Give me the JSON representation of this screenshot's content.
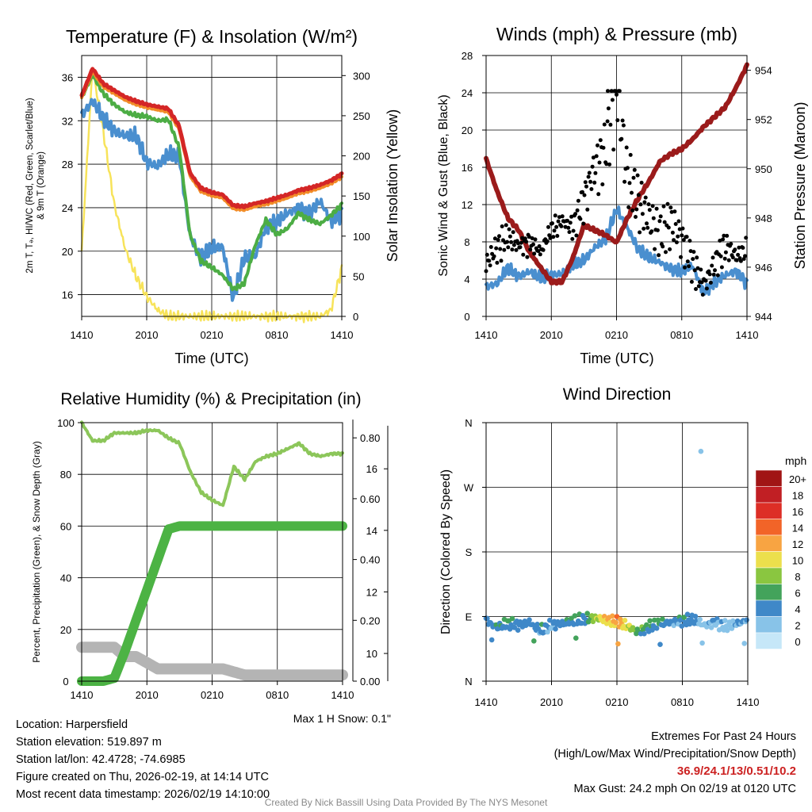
{
  "panels": {
    "temperature": {
      "title": "Temperature (F) & Insolation (W/m²)",
      "ylabel_line1": "2m T, Tₔ, HI/WC (Red, Green, Scarlet/Blue)",
      "ylabel_line2": "& 9m T (Orange)",
      "ylabel_right": "Solar Insolation (Yellow)",
      "xlabel": "Time (UTC)",
      "left_ticks": [
        "16",
        "20",
        "24",
        "28",
        "32",
        "36"
      ],
      "right_ticks": [
        "0",
        "50",
        "100",
        "150",
        "200",
        "250",
        "300"
      ]
    },
    "winds": {
      "title": "Winds (mph) & Pressure (mb)",
      "ylabel": "Sonic Wind & Gust (Blue, Black)",
      "ylabel_right": "Station Pressure (Maroon)",
      "xlabel": "Time (UTC)",
      "left_ticks": [
        "0",
        "4",
        "8",
        "12",
        "16",
        "20",
        "24",
        "28"
      ],
      "right_ticks": [
        "944",
        "946",
        "948",
        "950",
        "952",
        "954"
      ]
    },
    "humidity": {
      "title": "Relative Humidity (%) & Precipitation (in)",
      "ylabel": "Percent, Precipitation (Green), & Snow Depth (Gray)",
      "left_ticks": [
        "0",
        "20",
        "40",
        "60",
        "80",
        "100"
      ],
      "precip_ticks": [
        "0.00",
        "0.20",
        "0.40",
        "0.60",
        "0.80"
      ],
      "snow_ticks": [
        "10",
        "12",
        "14",
        "16"
      ],
      "note": "Max 1 H Snow: 0.1\""
    },
    "direction": {
      "title": "Wind Direction",
      "ylabel": "Direction (Colored By Speed)",
      "left_ticks": [
        "N",
        "E",
        "S",
        "W",
        "N"
      ],
      "legend_title": "mph",
      "legend_labels": [
        "20+",
        "18",
        "16",
        "14",
        "12",
        "10",
        "8",
        "6",
        "4",
        "2",
        "0"
      ]
    }
  },
  "time_ticks": [
    "1410",
    "2010",
    "0210",
    "0810",
    "1410"
  ],
  "colors": {
    "temp": "#d42626",
    "nine_m": "#f28c28",
    "dewpoint": "#4cad44",
    "windchill": "#4a8fcf",
    "solar": "#f7e35a",
    "gust": "#000000",
    "wind": "#4a8fcf",
    "pressure": "#9b1b1b",
    "rh": "#8cc65a",
    "precip": "#4cb344",
    "snow": "#b4b4b4",
    "scale": [
      "#c6e7f8",
      "#88c3e8",
      "#3f88c8",
      "#43a35b",
      "#8ac640",
      "#ecdf4c",
      "#f8a442",
      "#f26428",
      "#dd2e26",
      "#c11f24",
      "#a11515"
    ],
    "extremes": "#cc2222"
  },
  "chart_data": [
    {
      "type": "line",
      "title": "Temperature (F) & Insolation (W/m2)",
      "x": [
        0,
        1,
        2,
        3,
        4,
        5,
        6,
        7,
        8,
        9,
        10,
        11,
        12,
        13,
        14,
        15,
        16,
        17,
        18,
        19,
        20,
        21,
        22,
        23,
        24
      ],
      "xlabel": "Time (UTC)",
      "ylim": [
        14,
        38
      ],
      "y2lim": [
        0,
        325
      ],
      "series": [
        {
          "name": "2m T",
          "values": [
            34.3,
            36.8,
            35.4,
            34.8,
            34.2,
            33.8,
            33.5,
            33.3,
            33.1,
            31.5,
            27.2,
            25.8,
            25.4,
            25.2,
            24.2,
            24.1,
            24.4,
            24.6,
            24.9,
            25.2,
            25.6,
            25.8,
            26.1,
            26.5,
            27.1
          ]
        },
        {
          "name": "9m T",
          "values": [
            34.1,
            36.5,
            35.1,
            34.5,
            33.9,
            33.5,
            33.2,
            33.0,
            32.8,
            31.2,
            26.9,
            25.5,
            25.1,
            24.9,
            23.9,
            23.8,
            24.1,
            24.3,
            24.6,
            24.9,
            25.3,
            25.5,
            25.8,
            26.2,
            26.8
          ]
        },
        {
          "name": "Td",
          "values": [
            34.1,
            36.2,
            34.5,
            33.5,
            32.8,
            32.5,
            32.4,
            32.0,
            32.1,
            29.5,
            21.5,
            19.1,
            18.5,
            17.8,
            16.5,
            17.0,
            20.5,
            22.9,
            21.5,
            22.1,
            23.5,
            22.9,
            22.5,
            23.3,
            24.3
          ]
        },
        {
          "name": "HI/WC",
          "values": [
            32.5,
            33.8,
            32.2,
            31.1,
            30.6,
            30.6,
            28.2,
            27.8,
            28.9,
            28.7,
            21.4,
            19.3,
            20.3,
            20.4,
            15.6,
            19.4,
            19.5,
            22.3,
            22.6,
            23.5,
            24.0,
            23.4,
            24.6,
            22.8,
            23.5
          ]
        },
        {
          "name": "Solar Insolation",
          "axis": "right",
          "values": [
            80,
            310,
            230,
            140,
            85,
            50,
            25,
            8,
            0,
            0,
            0,
            0,
            0,
            0,
            0,
            0,
            0,
            0,
            0,
            0,
            0,
            0,
            0,
            8,
            60
          ]
        }
      ],
      "left_axis_label": "2m T, Td, HI/WC (Red, Green, Scarlet/Blue) & 9m T (Orange)",
      "right_axis_label": "Solar Insolation (Yellow)"
    },
    {
      "type": "line",
      "title": "Winds (mph) & Pressure (mb)",
      "x": [
        0,
        1,
        2,
        3,
        4,
        5,
        6,
        7,
        8,
        9,
        10,
        11,
        12,
        13,
        14,
        15,
        16,
        17,
        18,
        19,
        20,
        21,
        22,
        23,
        24
      ],
      "xlabel": "Time (UTC)",
      "ylim": [
        0,
        28
      ],
      "y2lim": [
        944,
        954.6
      ],
      "series": [
        {
          "name": "Sonic Wind",
          "values": [
            3.2,
            3.5,
            5.2,
            4.3,
            4.8,
            4.1,
            4.4,
            4.6,
            5.5,
            6.0,
            7.4,
            8.3,
            11.5,
            9.5,
            7.2,
            6.3,
            5.8,
            5.1,
            4.8,
            5.4,
            2.6,
            3.6,
            4.4,
            4.9,
            3.5
          ]
        },
        {
          "name": "Gust",
          "values": [
            5.5,
            7.2,
            8.3,
            7.4,
            7.8,
            6.8,
            9.1,
            10.0,
            9.3,
            12.4,
            15.6,
            17.5,
            24.2,
            14.7,
            12.1,
            10.3,
            8.7,
            9.9,
            8.2,
            5.6,
            3.2,
            5.4,
            7.5,
            6.3,
            6.9
          ]
        },
        {
          "name": "Station Pressure",
          "axis": "right",
          "values": [
            950.4,
            949.1,
            948.0,
            947.5,
            946.6,
            946.0,
            945.4,
            945.4,
            946.4,
            947.7,
            947.5,
            947.3,
            947.0,
            948.0,
            948.8,
            949.5,
            950.3,
            950.6,
            950.8,
            951.2,
            951.7,
            952.1,
            952.5,
            953.3,
            954.2
          ]
        }
      ],
      "left_axis_label": "Sonic Wind & Gust (Blue, Black)",
      "right_axis_label": "Station Pressure (Maroon)"
    },
    {
      "type": "line",
      "title": "Relative Humidity (%) & Precipitation (in)",
      "x": [
        0,
        1,
        2,
        3,
        4,
        5,
        6,
        7,
        8,
        9,
        10,
        11,
        12,
        13,
        14,
        15,
        16,
        17,
        18,
        19,
        20,
        21,
        22,
        23,
        24
      ],
      "ylim": [
        0,
        100
      ],
      "series": [
        {
          "name": "Relative Humidity",
          "values": [
            100,
            93,
            93,
            96,
            96,
            96,
            97,
            97,
            94,
            92,
            81,
            73,
            70,
            68,
            83,
            78,
            85,
            87,
            88,
            90,
            92,
            88,
            87,
            88,
            88
          ]
        },
        {
          "name": "Precipitation",
          "axis": "precip",
          "ylim": [
            0,
            0.85
          ],
          "values": [
            0,
            0,
            0,
            0.01,
            0.1,
            0.2,
            0.3,
            0.4,
            0.5,
            0.51,
            0.51,
            0.51,
            0.51,
            0.51,
            0.51,
            0.51,
            0.51,
            0.51,
            0.51,
            0.51,
            0.51,
            0.51,
            0.51,
            0.51,
            0.51
          ]
        },
        {
          "name": "Snow Depth",
          "axis": "snow",
          "ylim": [
            9.1,
            17.5
          ],
          "values": [
            10.2,
            10.2,
            10.2,
            10.2,
            9.9,
            9.9,
            9.7,
            9.5,
            9.5,
            9.5,
            9.5,
            9.5,
            9.5,
            9.5,
            9.4,
            9.3,
            9.3,
            9.3,
            9.3,
            9.3,
            9.3,
            9.3,
            9.3,
            9.3,
            9.3
          ]
        }
      ],
      "left_axis_label": "Percent, Precipitation (Green), & Snow Depth (Gray)"
    },
    {
      "type": "scatter",
      "title": "Wind Direction",
      "x": [
        0,
        1,
        2,
        3,
        4,
        5,
        6,
        7,
        8,
        9,
        10,
        11,
        12,
        13,
        14,
        15,
        16,
        17,
        18,
        19,
        20,
        21,
        22,
        23,
        24
      ],
      "ylim": [
        0,
        360
      ],
      "y_tick_labels": [
        "N",
        "E",
        "S",
        "W",
        "N"
      ],
      "series": [
        {
          "name": "Direction",
          "values": [
            85,
            75,
            80,
            78,
            82,
            70,
            78,
            80,
            84,
            86,
            88,
            85,
            82,
            76,
            68,
            76,
            80,
            82,
            84,
            86,
            78,
            82,
            76,
            80,
            83
          ]
        },
        {
          "name": "Speed (mph)",
          "values": [
            4,
            4,
            5,
            4,
            4,
            4,
            3,
            4,
            5,
            4,
            8,
            11,
            12,
            9,
            6,
            5,
            5,
            4,
            4,
            4,
            2,
            3,
            2,
            3,
            3
          ]
        }
      ],
      "outliers": [
        {
          "x": 19.7,
          "direction": 320,
          "speed": 2
        }
      ],
      "color_scale_mph": [
        "0",
        "2",
        "4",
        "6",
        "8",
        "10",
        "12",
        "14",
        "16",
        "18",
        "20+"
      ],
      "left_axis_label": "Direction (Colored By Speed)"
    }
  ],
  "info": {
    "location": "Location: Harpersfield",
    "elevation": "Station elevation: 519.897 m",
    "latlon": "Station lat/lon: 42.4728; -74.6985",
    "created": "Figure created on Thu, 2026-02-19, at 14:14 UTC",
    "recent": "Most recent data timestamp: 2026/02/19 14:10:00",
    "extremes_title": "Extremes For Past 24 Hours",
    "extremes_sub": "(High/Low/Max Wind/Precipitation/Snow Depth)",
    "extremes_values": "36.9/24.1/13/0.51/10.2",
    "max_gust": "Max Gust: 24.2 mph On 02/19 at 0120 UTC"
  },
  "credit": "Created By Nick Bassill Using Data Provided By The NYS Mesonet"
}
